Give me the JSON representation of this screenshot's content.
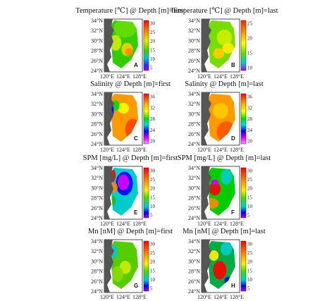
{
  "panels": [
    {
      "title": "Temperature [℃] @ Depth [m]=first",
      "letter": "A",
      "colorbar": [
        "30",
        "25",
        "20",
        "15",
        "10",
        "5"
      ],
      "scheme": "temp"
    },
    {
      "title": "Temperature [℃] @ Depth [m]=last",
      "letter": "B",
      "colorbar": [
        "25",
        "20",
        "15",
        "10"
      ],
      "scheme": "temp2"
    },
    {
      "title": "Salinity @ Depth [m]=first",
      "letter": "C",
      "colorbar": [
        "36",
        "32",
        "28",
        "24",
        "20"
      ],
      "scheme": "sal"
    },
    {
      "title": "Salinity @ Depth [m]=last",
      "letter": "D",
      "colorbar": [
        "36",
        "32",
        "28",
        "24",
        "20"
      ],
      "scheme": "sal2"
    },
    {
      "title": "SPM [mg/L] @ Depth [m]=first",
      "letter": "E",
      "colorbar": [
        "30",
        "25",
        "20",
        "15",
        "10",
        "5"
      ],
      "scheme": "spm"
    },
    {
      "title": "SPM [mg/L] @ Depth [m]=last",
      "letter": "F",
      "colorbar": [
        "30",
        "25",
        "20",
        "15",
        "10",
        "5"
      ],
      "scheme": "spm2"
    },
    {
      "title": "Mn [nM] @ Depth [m]=first",
      "letter": "G",
      "colorbar": [
        "30",
        "25",
        "20",
        "15",
        "10",
        "5"
      ],
      "scheme": "mn"
    },
    {
      "title": "Mn [nM] @ Depth [m]=last",
      "letter": "H",
      "colorbar": [
        "30",
        "25",
        "20",
        "15",
        "10",
        "5"
      ],
      "scheme": "mn2"
    }
  ],
  "lat_ticks": [
    "34°N",
    "32°N",
    "30°N",
    "28°N",
    "26°N",
    "24°N"
  ],
  "lon_ticks": [
    "120°E",
    "124°E",
    "128°E"
  ],
  "colors": {
    "land": "#555555",
    "sea_bg": "#ffffff",
    "colorbar": [
      "#ff0000",
      "#ff7700",
      "#ffdd00",
      "#88dd00",
      "#00c000",
      "#00cccc",
      "#0000ff",
      "#cc00ff"
    ]
  }
}
